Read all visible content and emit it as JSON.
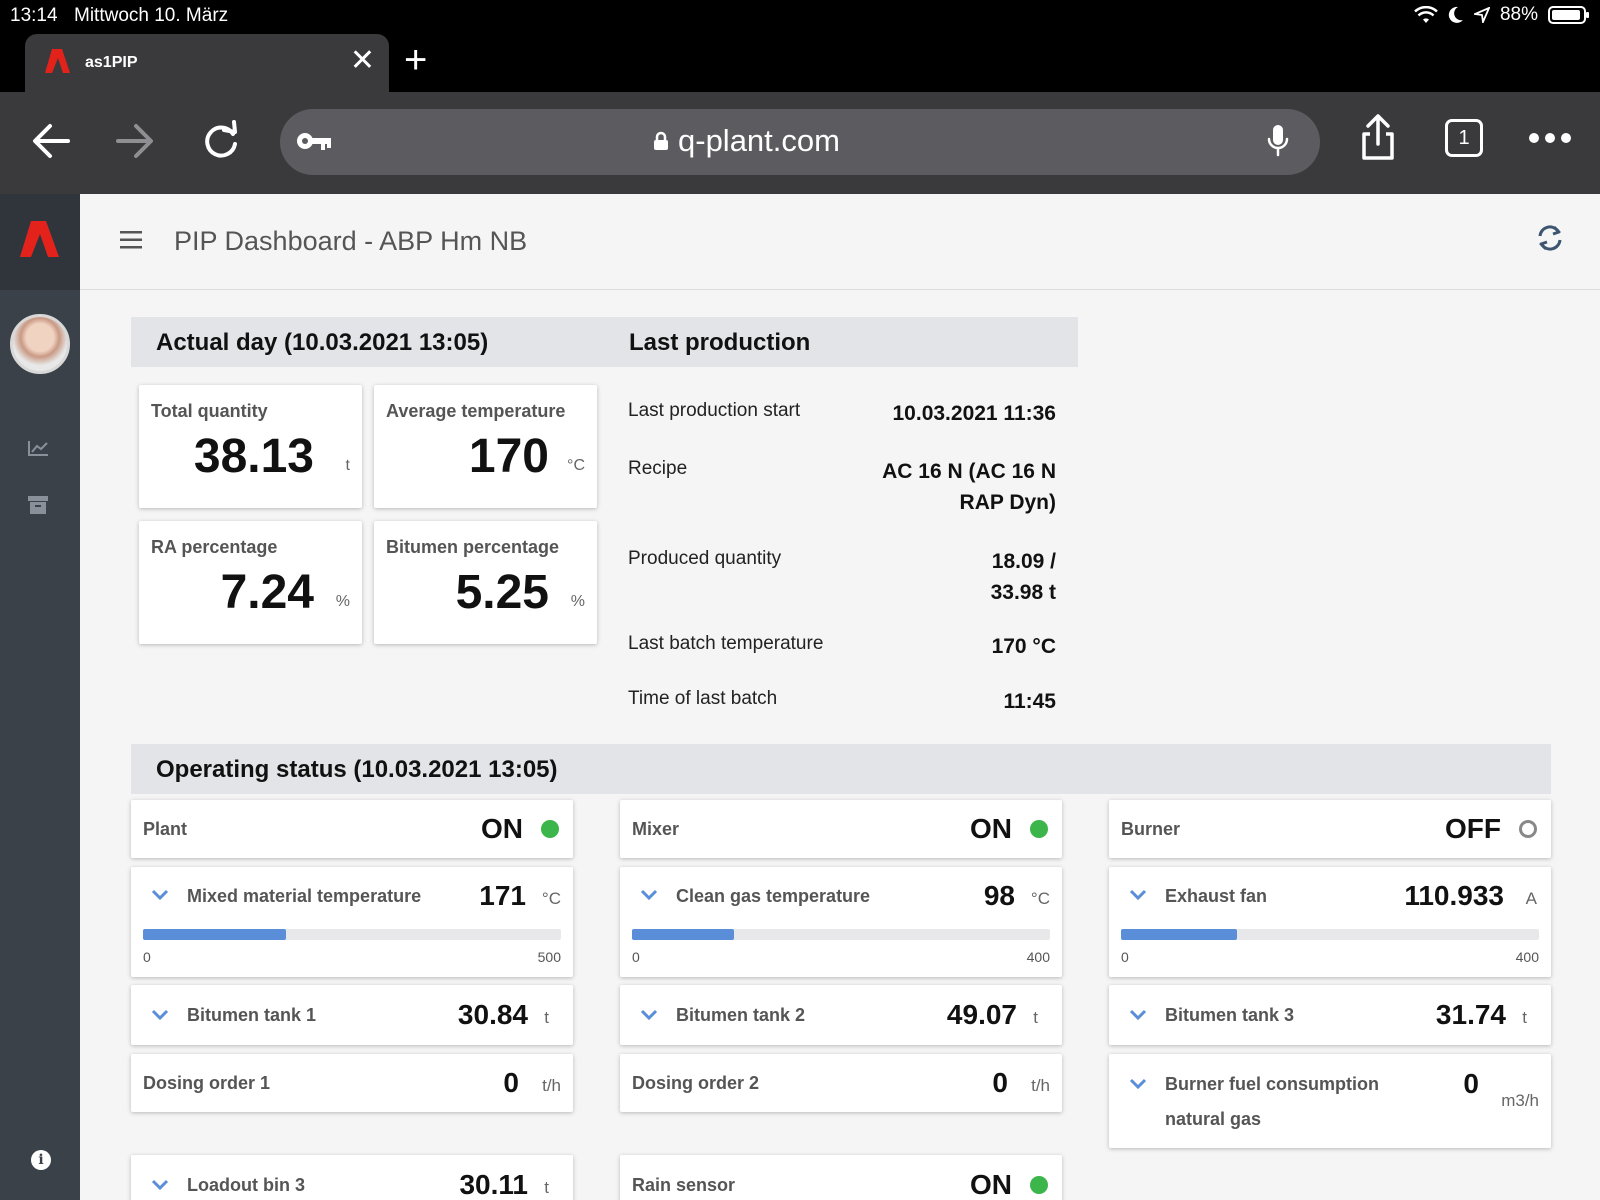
{
  "status_bar": {
    "time": "13:14",
    "date": "Mittwoch 10. März",
    "battery": "88%"
  },
  "browser": {
    "tab_title": "as1PIP",
    "url": "q-plant.com",
    "tabs_count": "1",
    "icons": [
      "back-icon",
      "forward-icon",
      "reload-icon",
      "key-icon",
      "lock-icon",
      "microphone-icon",
      "share-icon",
      "more-icon",
      "close-icon",
      "plus-icon"
    ]
  },
  "app": {
    "title": "PIP Dashboard - ABP Hm NB",
    "brand_color": "#e3231b"
  },
  "actual_day": {
    "header": "Actual day (10.03.2021 13:05)",
    "kpis": [
      {
        "label": "Total quantity",
        "value": "38.13",
        "unit": "t"
      },
      {
        "label": "Average temperature",
        "value": "170",
        "unit": "°C"
      },
      {
        "label": "RA percentage",
        "value": "7.24",
        "unit": "%"
      },
      {
        "label": "Bitumen percentage",
        "value": "5.25",
        "unit": "%"
      }
    ]
  },
  "last_production": {
    "header": "Last production",
    "rows": [
      {
        "label": "Last production start",
        "value_line1": "10.03.2021 11:36",
        "value_line2": ""
      },
      {
        "label": "Recipe",
        "value_line1": "AC 16 N (AC 16 N",
        "value_line2": "RAP Dyn)"
      },
      {
        "label": "Produced quantity",
        "value_line1": "18.09 /",
        "value_line2": "33.98 t"
      },
      {
        "label": "Last batch temperature",
        "value_line1": "170 °C",
        "value_line2": ""
      },
      {
        "label": "Time of last batch",
        "value_line1": "11:45",
        "value_line2": ""
      }
    ]
  },
  "operating_status": {
    "header": "Operating status (10.03.2021 13:05)",
    "plant": {
      "label": "Plant",
      "state": "ON",
      "on": true
    },
    "mixer": {
      "label": "Mixer",
      "state": "ON",
      "on": true
    },
    "burner": {
      "label": "Burner",
      "state": "OFF",
      "on": false
    },
    "mixed_temp": {
      "label": "Mixed material temperature",
      "value": "171",
      "unit": "°C",
      "min": "0",
      "max": "500",
      "level": 0.342
    },
    "clean_gas": {
      "label": "Clean gas temperature",
      "value": "98",
      "unit": "°C",
      "min": "0",
      "max": "400",
      "level": 0.245
    },
    "exhaust_fan": {
      "label": "Exhaust fan",
      "value": "110.933",
      "unit": "A",
      "min": "0",
      "max": "400",
      "level": 0.277
    },
    "tank1": {
      "label": "Bitumen tank 1",
      "value": "30.84",
      "unit": "t"
    },
    "tank2": {
      "label": "Bitumen tank 2",
      "value": "49.07",
      "unit": "t"
    },
    "tank3": {
      "label": "Bitumen tank 3",
      "value": "31.74",
      "unit": "t"
    },
    "dosing1": {
      "label": "Dosing order 1",
      "value": "0",
      "unit": "t/h"
    },
    "dosing2": {
      "label": "Dosing order 2",
      "value": "0",
      "unit": "t/h"
    },
    "burner_fuel": {
      "label_line1": "Burner fuel consumption",
      "label_line2": "natural gas",
      "value": "0",
      "unit": "m3/h"
    },
    "loadout": {
      "label": "Loadout bin 3",
      "value": "30.11",
      "unit": "t"
    },
    "rain": {
      "label": "Rain sensor",
      "state": "ON",
      "on": true
    }
  }
}
